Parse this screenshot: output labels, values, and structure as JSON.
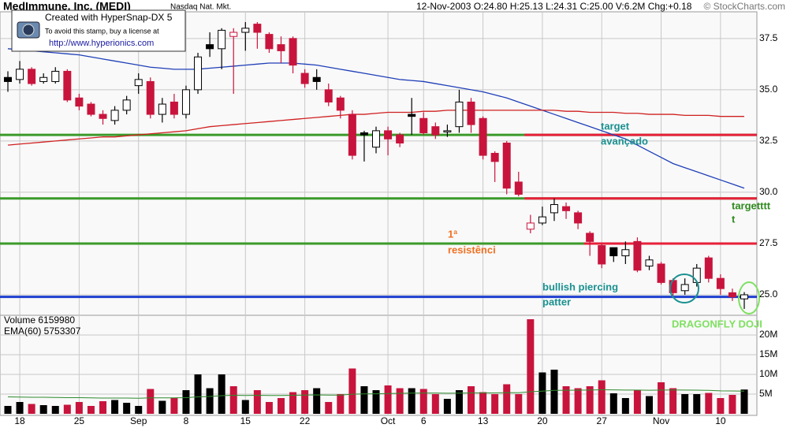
{
  "header": {
    "title": "MedImmune, Inc. (MEDI)",
    "exchange": "Nasdaq Nat. Mkt.",
    "quote": "12-Nov-2003 O:24.80 H:25.13 L:24.31 C:25.00 V:6.2M Chg:+0.18",
    "credit": "© StockCharts.com"
  },
  "stamp": [
    "Created with HyperSnap-DX 5",
    "To avoid this stamp, buy a license at",
    "http://www.hyperionics.com"
  ],
  "chart_data": [
    {
      "type": "candlestick",
      "categories": [
        null,
        "18",
        null,
        null,
        null,
        null,
        "25",
        null,
        null,
        null,
        null,
        "Sep",
        null,
        null,
        null,
        "8",
        null,
        null,
        null,
        null,
        "15",
        null,
        null,
        null,
        null,
        "22",
        null,
        null,
        null,
        null,
        null,
        null,
        "Oct",
        null,
        null,
        "6",
        null,
        null,
        null,
        null,
        "13",
        null,
        null,
        null,
        null,
        "20",
        null,
        null,
        null,
        null,
        "27",
        null,
        null,
        null,
        null,
        "Nov",
        null,
        null,
        null,
        null,
        "10",
        null,
        null
      ],
      "open": [
        35.6,
        35.5,
        36.0,
        35.4,
        35.4,
        35.9,
        34.6,
        34.3,
        33.8,
        33.5,
        34.0,
        35.2,
        35.4,
        33.8,
        34.4,
        33.8,
        35.0,
        37.2,
        37.0,
        37.6,
        37.8,
        38.2,
        37.7,
        37.2,
        37.5,
        35.8,
        35.6,
        35.0,
        34.6,
        33.8,
        32.9,
        32.2,
        33.0,
        32.8,
        33.8,
        33.6,
        33.2,
        33.0,
        33.2,
        34.4,
        33.6,
        31.9,
        32.4,
        30.5,
        28.2,
        28.5,
        29.0,
        29.3,
        29.0,
        28.0,
        27.4,
        27.3,
        26.9,
        27.6,
        26.4,
        26.5,
        25.7,
        25.2,
        25.6,
        26.8,
        25.8,
        25.1,
        24.8
      ],
      "high": [
        35.9,
        36.4,
        36.1,
        35.8,
        36.1,
        36.0,
        34.8,
        34.4,
        34.0,
        34.2,
        34.7,
        35.8,
        35.6,
        34.6,
        34.8,
        35.2,
        36.8,
        37.8,
        38.0,
        38.0,
        38.3,
        38.3,
        37.8,
        37.6,
        37.6,
        36.0,
        36.0,
        35.3,
        34.7,
        34.0,
        33.0,
        33.2,
        33.2,
        32.9,
        34.6,
        33.9,
        33.4,
        33.3,
        35.0,
        34.6,
        33.7,
        32.0,
        32.5,
        31.0,
        28.9,
        29.3,
        29.7,
        29.5,
        29.1,
        28.1,
        27.5,
        27.3,
        27.6,
        27.8,
        26.9,
        26.6,
        25.8,
        25.8,
        26.5,
        26.9,
        26.0,
        25.3,
        25.13
      ],
      "low": [
        34.9,
        35.3,
        35.2,
        35.3,
        35.3,
        34.4,
        34.0,
        33.7,
        33.3,
        33.3,
        33.8,
        34.8,
        33.6,
        33.4,
        33.6,
        33.6,
        34.8,
        36.6,
        36.0,
        34.8,
        36.9,
        37.0,
        36.8,
        36.3,
        35.8,
        35.1,
        35.0,
        34.2,
        33.6,
        31.6,
        31.5,
        31.9,
        31.8,
        32.2,
        32.8,
        32.8,
        32.6,
        32.7,
        32.9,
        32.9,
        31.6,
        30.5,
        29.9,
        29.8,
        28.0,
        28.4,
        28.6,
        28.7,
        28.2,
        26.9,
        26.3,
        26.6,
        26.5,
        26.1,
        26.2,
        25.5,
        24.9,
        25.0,
        25.4,
        25.6,
        25.0,
        24.7,
        24.31
      ],
      "close": [
        35.4,
        36.0,
        35.3,
        35.6,
        35.9,
        34.5,
        34.2,
        33.8,
        33.6,
        34.0,
        34.5,
        35.5,
        33.8,
        34.3,
        33.8,
        35.0,
        36.6,
        37.0,
        37.9,
        37.8,
        38.0,
        37.8,
        37.0,
        36.9,
        36.2,
        35.3,
        35.4,
        34.4,
        34.0,
        31.8,
        32.8,
        33.0,
        32.6,
        32.4,
        33.7,
        32.9,
        32.8,
        33.0,
        34.4,
        33.3,
        31.8,
        31.5,
        30.2,
        29.9,
        28.5,
        28.8,
        29.4,
        29.1,
        28.5,
        27.6,
        26.5,
        26.9,
        27.2,
        26.2,
        26.7,
        25.6,
        25.1,
        25.5,
        26.3,
        25.8,
        25.3,
        24.9,
        25.0
      ],
      "up_color": "#000000",
      "down_color": "#c8143c",
      "series": [
        {
          "color": "#1f3fb8",
          "values": [
            37.0,
            36.95,
            36.9,
            36.85,
            36.8,
            36.75,
            36.7,
            36.6,
            36.5,
            36.4,
            36.3,
            36.2,
            36.1,
            36.05,
            36.0,
            36.0,
            36.0,
            36.05,
            36.1,
            36.15,
            36.2,
            36.25,
            36.3,
            36.3,
            36.3,
            36.25,
            36.2,
            36.1,
            36.0,
            35.9,
            35.8,
            35.7,
            35.6,
            35.5,
            35.45,
            35.4,
            35.3,
            35.2,
            35.1,
            35.0,
            34.9,
            34.75,
            34.6,
            34.4,
            34.2,
            34.0,
            33.8,
            33.6,
            33.4,
            33.2,
            33.0,
            32.8,
            32.6,
            32.3,
            32.0,
            31.7,
            31.4,
            31.2,
            31.0,
            30.8,
            30.6,
            30.4,
            30.2
          ]
        },
        {
          "color": "#d02020",
          "values": [
            32.3,
            32.35,
            32.4,
            32.45,
            32.5,
            32.55,
            32.6,
            32.65,
            32.7,
            32.7,
            32.75,
            32.8,
            32.85,
            32.9,
            32.95,
            33.0,
            33.1,
            33.2,
            33.25,
            33.3,
            33.35,
            33.4,
            33.45,
            33.5,
            33.55,
            33.6,
            33.65,
            33.7,
            33.75,
            33.8,
            33.8,
            33.85,
            33.9,
            33.9,
            33.9,
            33.95,
            33.95,
            34.0,
            34.0,
            34.0,
            34.0,
            34.0,
            34.0,
            34.0,
            34.0,
            34.0,
            34.0,
            33.95,
            33.95,
            33.9,
            33.9,
            33.9,
            33.85,
            33.85,
            33.8,
            33.8,
            33.8,
            33.75,
            33.75,
            33.75,
            33.7,
            33.7,
            33.7
          ]
        }
      ],
      "levels": [
        {
          "value": 32.8,
          "color": "#3a9a2a"
        },
        {
          "value": 29.7,
          "color": "#3a9a2a"
        },
        {
          "value": 27.5,
          "color": "#3a9a2a"
        },
        {
          "value": 24.9,
          "color": "#1f3fd0"
        },
        {
          "value": 32.8,
          "color": "#e8203a",
          "from": 44
        },
        {
          "value": 29.7,
          "color": "#e8203a",
          "from": 44
        },
        {
          "value": 27.5,
          "color": "#e8203a",
          "from": 49
        }
      ],
      "annotations": [
        {
          "lines": [
            "target",
            "avançado"
          ],
          "color": "#1a9090"
        },
        {
          "lines": [
            "targetttt",
            "t"
          ],
          "color": "#2f8a1e"
        },
        {
          "lines": [
            "1ª",
            "resistênci"
          ],
          "color": "#f07020"
        },
        {
          "lines": [
            "bullish piercing",
            "patter"
          ],
          "color": "#1a9090"
        },
        {
          "lines": [
            "DRAGONFLY DOJI"
          ],
          "color": "#7ee060"
        }
      ],
      "ylim": [
        24.0,
        38.8
      ],
      "yticks": [
        {
          "value": 25,
          "label": "25.0"
        },
        27.5,
        {
          "value": 30,
          "label": "30.0"
        },
        32.5,
        {
          "value": 35,
          "label": "35.0"
        },
        37.5
      ],
      "grid": true
    },
    {
      "type": "bar",
      "series": [
        {
          "name": "Volume 6159980",
          "values": [
            2000000,
            3000000,
            2500000,
            2200000,
            2000000,
            2300000,
            3000000,
            2000000,
            3200000,
            3500000,
            2800000,
            2000000,
            6300000,
            3300000,
            4000000,
            6000000,
            10000000,
            6500000,
            10000000,
            7000000,
            3500000,
            6000000,
            3000000,
            4000000,
            5500000,
            6000000,
            6500000,
            3000000,
            5000000,
            11500000,
            7000000,
            6000000,
            7200000,
            6500000,
            6500000,
            6300000,
            5000000,
            3800000,
            6000000,
            7000000,
            5500000,
            5000000,
            7500000,
            5000000,
            24000000,
            10500000,
            11200000,
            7000000,
            6500000,
            7000000,
            8500000,
            5200000,
            4000000,
            6000000,
            4500000,
            8000000,
            6500000,
            5000000,
            5000000,
            5300000,
            4000000,
            4800000,
            6159980
          ]
        },
        {
          "name": "EMA(60) 5753307",
          "color": "#2e8b2e",
          "values": [
            4300000,
            4250000,
            4200000,
            4200000,
            4150000,
            4100000,
            4100000,
            4050000,
            4000000,
            4000000,
            4000000,
            3950000,
            4050000,
            4050000,
            4050000,
            4100000,
            4300000,
            4400000,
            4600000,
            4700000,
            4650000,
            4700000,
            4650000,
            4650000,
            4700000,
            4750000,
            4800000,
            4750000,
            4750000,
            4980000,
            5050000,
            5080000,
            5150000,
            5200000,
            5250000,
            5280000,
            5270000,
            5220000,
            5250000,
            5300000,
            5310000,
            5300000,
            5370000,
            5360000,
            5600000,
            5760000,
            5940000,
            5980000,
            6000000,
            6030000,
            6110000,
            6080000,
            6020000,
            6020000,
            5970000,
            6030000,
            6050000,
            6020000,
            5990000,
            5960000,
            5820000,
            5790000,
            5753307
          ]
        }
      ],
      "ylim": [
        0,
        25000000
      ],
      "yticks": [
        {
          "value": 5000000,
          "label": "5M"
        },
        {
          "value": 10000000,
          "label": "10M"
        },
        {
          "value": 15000000,
          "label": "15M"
        },
        {
          "value": 20000000,
          "label": "20M"
        }
      ],
      "grid": true
    }
  ]
}
